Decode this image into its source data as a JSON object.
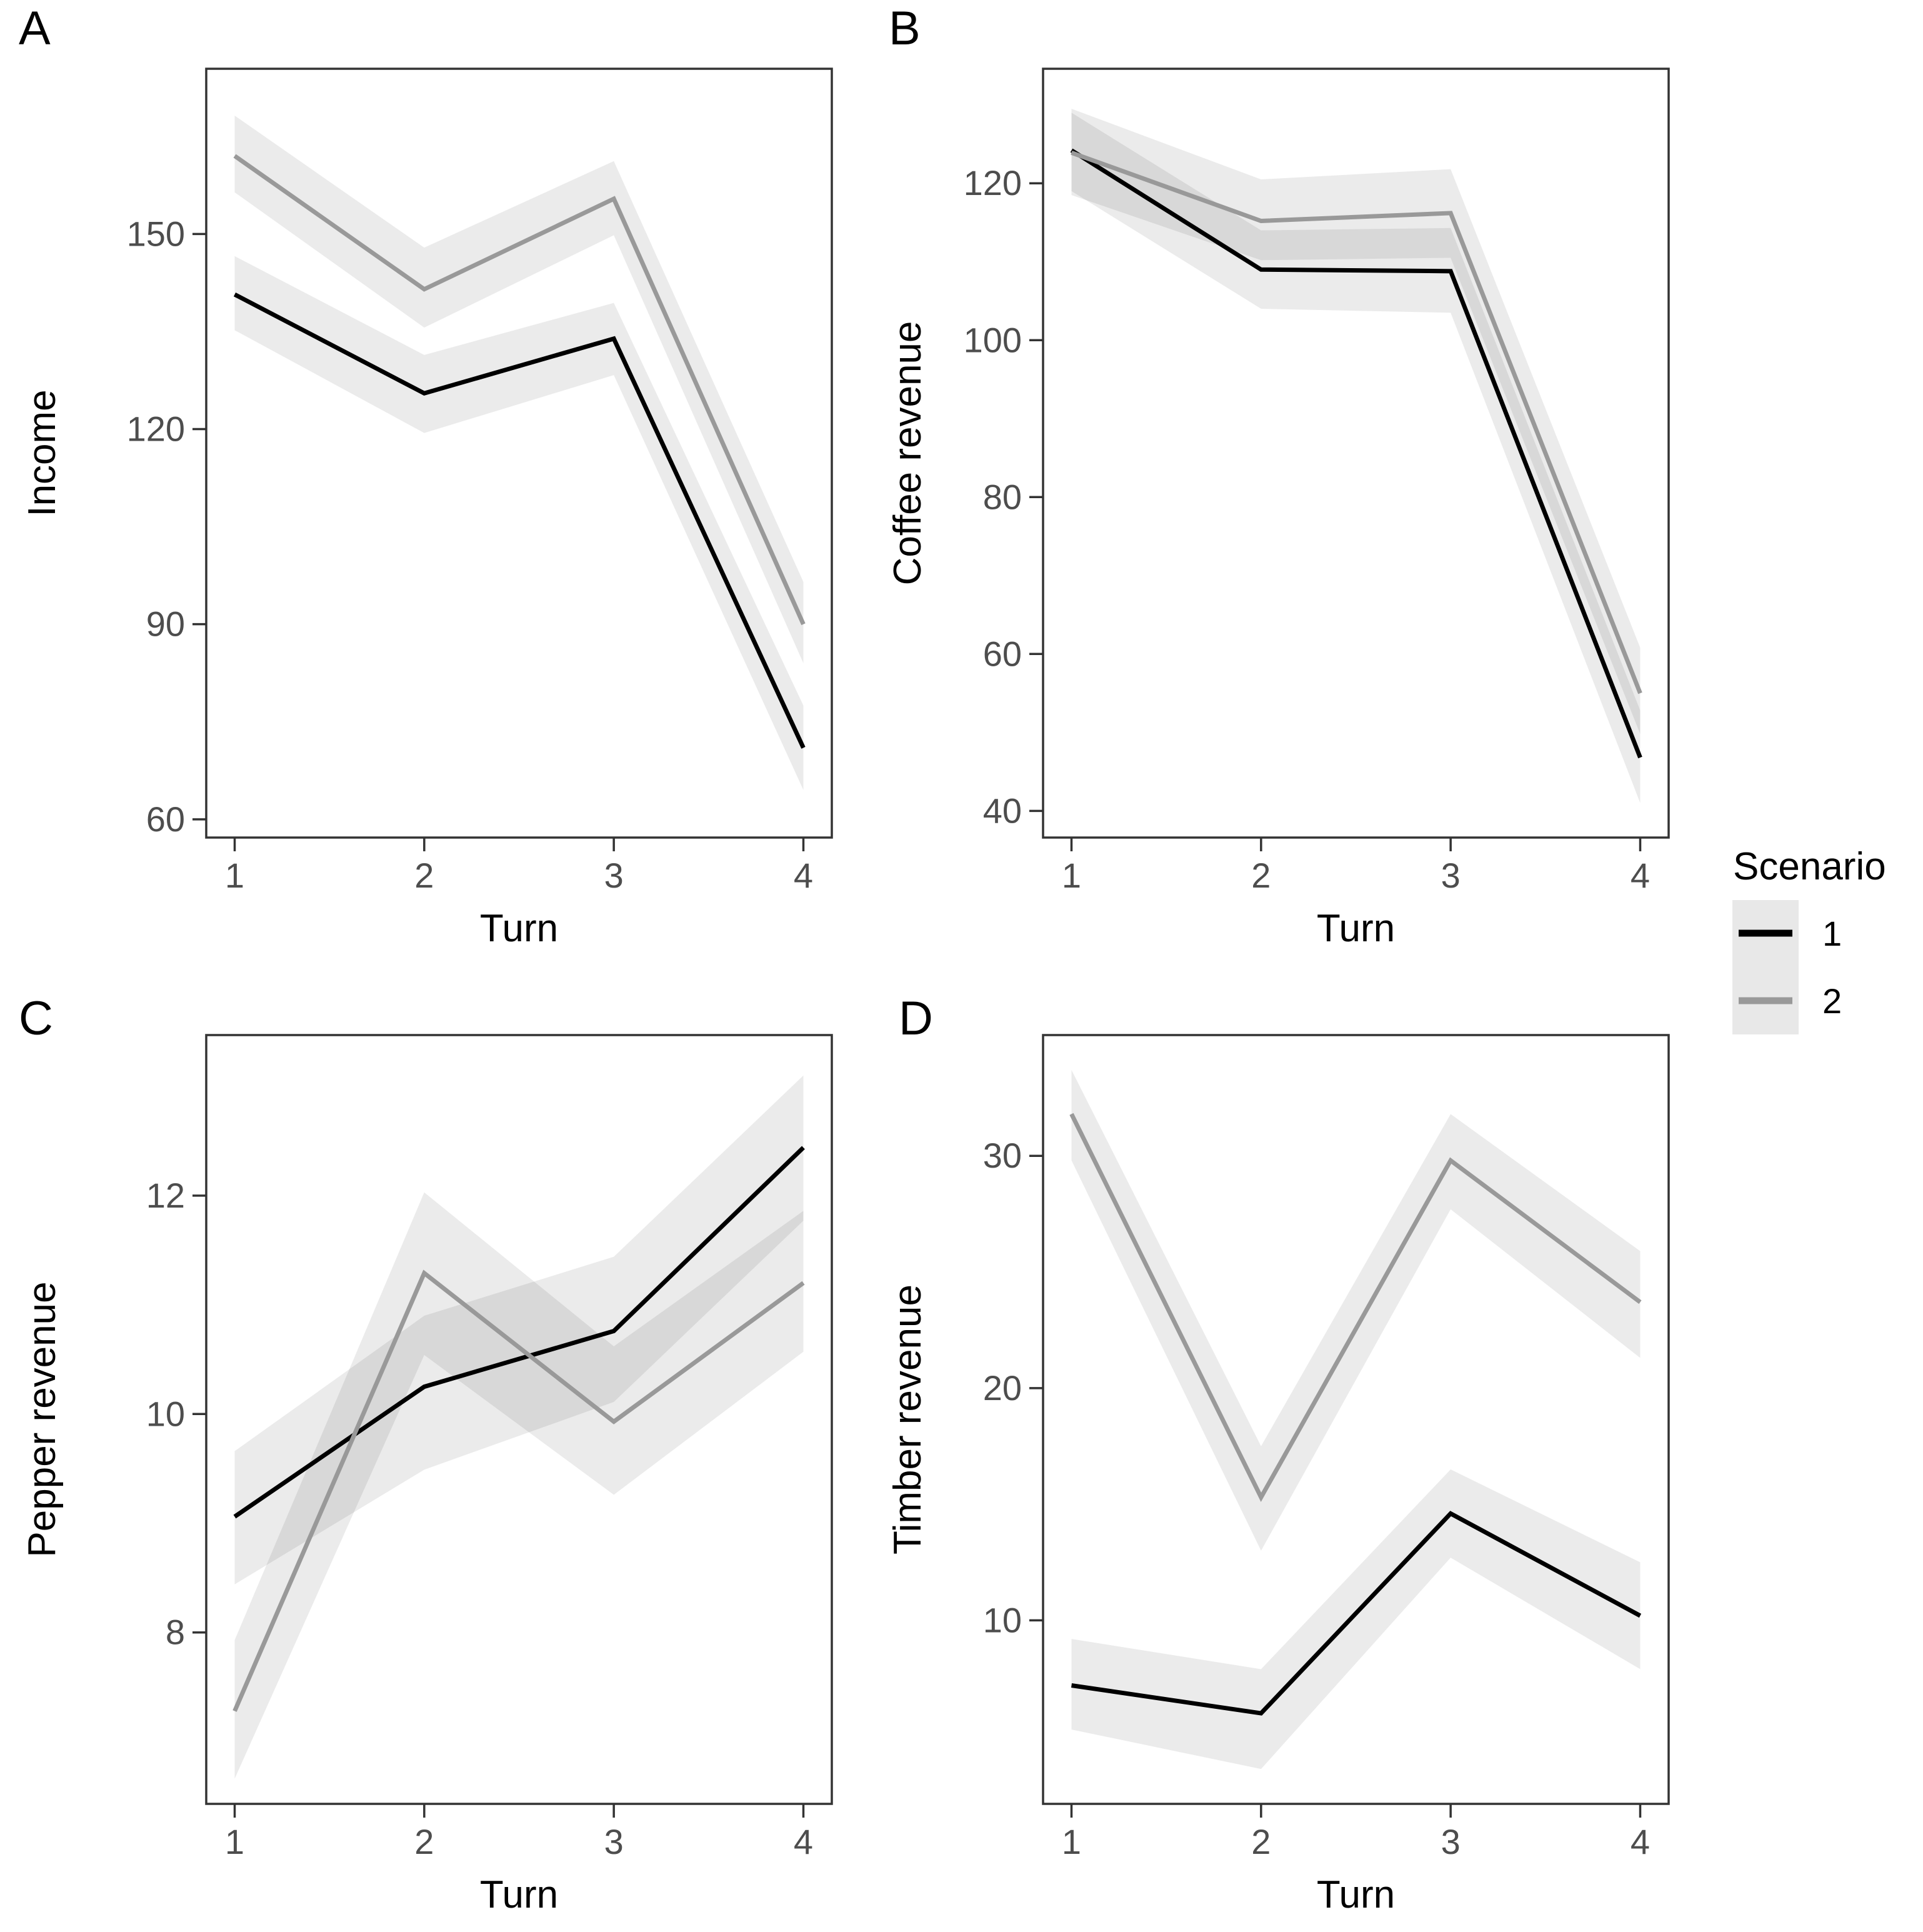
{
  "figure_type": "four-panel line chart with confidence ribbons",
  "legend": {
    "title": "Scenario",
    "key_bg": "#e8e8e8",
    "items": [
      {
        "label": "1",
        "color": "#000000"
      },
      {
        "label": "2",
        "color": "#999999"
      }
    ]
  },
  "style": {
    "ribbon_fill": "#000000",
    "ribbon_opacity": 0.08,
    "border_color": "#333333",
    "tick_color": "#333333",
    "tick_text_color": "#4d4d4d",
    "axis_title_color": "#000000",
    "line_width": 7,
    "series1_color": "#000000",
    "series2_color": "#999999"
  },
  "chart_data": [
    {
      "id": "A",
      "tag": "A",
      "type": "line",
      "xlabel": "Turn",
      "ylabel": "Income",
      "x": [
        1,
        2,
        3,
        4
      ],
      "xticks": [
        1,
        2,
        3,
        4
      ],
      "xlim": [
        0.85,
        4.15
      ],
      "yticks": [
        60,
        90,
        120,
        150
      ],
      "ylim": [
        57.2,
        175.4
      ],
      "grid": false,
      "legend_position": "right-outside",
      "series": [
        {
          "name": "1",
          "color": "#000000",
          "values": [
            140.7,
            125.5,
            133.9,
            71.0
          ],
          "low": [
            135.2,
            119.4,
            128.3,
            64.5
          ],
          "high": [
            146.6,
            131.4,
            139.4,
            77.5
          ]
        },
        {
          "name": "2",
          "color": "#999999",
          "values": [
            162.0,
            141.5,
            155.4,
            90.0
          ],
          "low": [
            156.4,
            135.6,
            149.8,
            84.0
          ],
          "high": [
            168.2,
            147.9,
            161.2,
            96.5
          ]
        }
      ]
    },
    {
      "id": "B",
      "tag": "B",
      "type": "line",
      "xlabel": "Turn",
      "ylabel": "Coffee revenue",
      "x": [
        1,
        2,
        3,
        4
      ],
      "xticks": [
        1,
        2,
        3,
        4
      ],
      "xlim": [
        0.85,
        4.15
      ],
      "yticks": [
        40,
        60,
        80,
        100,
        120
      ],
      "ylim": [
        36.6,
        134.6
      ],
      "grid": false,
      "series": [
        {
          "name": "1",
          "color": "#000000",
          "values": [
            124.2,
            109.0,
            108.8,
            46.8
          ],
          "low": [
            119.0,
            104.0,
            103.5,
            41.0
          ],
          "high": [
            129.0,
            114.0,
            114.3,
            52.8
          ]
        },
        {
          "name": "2",
          "color": "#999999",
          "values": [
            123.9,
            115.2,
            116.2,
            55.0
          ],
          "low": [
            118.5,
            110.2,
            110.5,
            49.8
          ],
          "high": [
            129.5,
            120.5,
            121.8,
            60.8
          ]
        }
      ]
    },
    {
      "id": "C",
      "tag": "C",
      "type": "line",
      "xlabel": "Turn",
      "ylabel": "Pepper revenue",
      "x": [
        1,
        2,
        3,
        4
      ],
      "xticks": [
        1,
        2,
        3,
        4
      ],
      "xlim": [
        0.85,
        4.15
      ],
      "yticks": [
        8,
        10,
        12
      ],
      "ylim": [
        6.43,
        13.47
      ],
      "grid": false,
      "series": [
        {
          "name": "1",
          "color": "#000000",
          "values": [
            9.06,
            10.25,
            10.76,
            12.44
          ],
          "low": [
            8.44,
            9.49,
            10.11,
            11.77
          ],
          "high": [
            9.66,
            10.9,
            11.44,
            13.1
          ]
        },
        {
          "name": "2",
          "color": "#999999",
          "values": [
            7.28,
            11.29,
            9.93,
            11.2
          ],
          "low": [
            6.66,
            10.54,
            9.26,
            10.57
          ],
          "high": [
            7.93,
            12.03,
            10.62,
            11.86
          ]
        }
      ]
    },
    {
      "id": "D",
      "tag": "D",
      "type": "line",
      "xlabel": "Turn",
      "ylabel": "Timber revenue",
      "x": [
        1,
        2,
        3,
        4
      ],
      "xticks": [
        1,
        2,
        3,
        4
      ],
      "xlim": [
        0.85,
        4.15
      ],
      "yticks": [
        10,
        20,
        30
      ],
      "ylim": [
        2.1,
        35.2
      ],
      "grid": false,
      "series": [
        {
          "name": "1",
          "color": "#000000",
          "values": [
            7.2,
            6.0,
            14.6,
            10.2
          ],
          "low": [
            5.3,
            3.6,
            12.7,
            7.9
          ],
          "high": [
            9.2,
            7.9,
            16.5,
            12.5
          ]
        },
        {
          "name": "2",
          "color": "#999999",
          "values": [
            31.8,
            15.3,
            29.8,
            23.7
          ],
          "low": [
            29.8,
            13.0,
            27.7,
            21.3
          ],
          "high": [
            33.7,
            17.5,
            31.8,
            25.9
          ]
        }
      ]
    }
  ]
}
